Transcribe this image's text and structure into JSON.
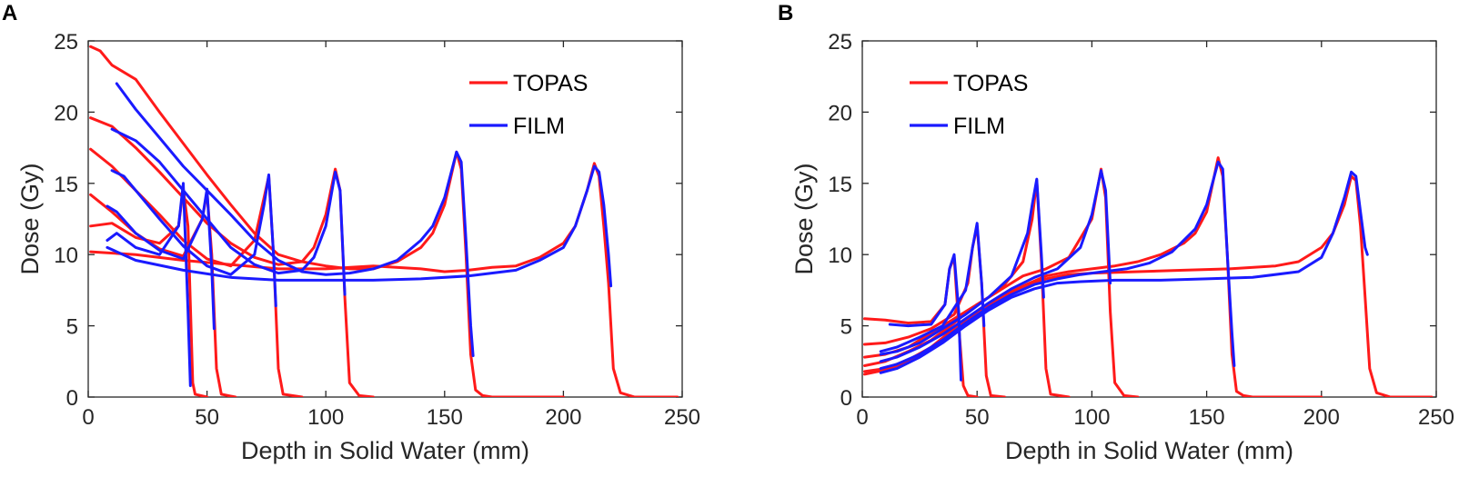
{
  "chart_data": [
    {
      "type": "line",
      "panel_label": "A",
      "xlabel": "Depth in Solid Water (mm)",
      "ylabel": "Dose (Gy)",
      "xlim": [
        0,
        250
      ],
      "ylim": [
        0,
        25
      ],
      "xticks": [
        0,
        50,
        100,
        150,
        200,
        250
      ],
      "yticks": [
        0,
        5,
        10,
        15,
        20,
        25
      ],
      "legend": {
        "position": "top-right",
        "entries": [
          {
            "name": "TOPAS",
            "color": "#ff1a1a"
          },
          {
            "name": "FILM",
            "color": "#1a1aff"
          }
        ]
      },
      "series": [
        {
          "name": "TOPAS",
          "color": "#ff1a1a",
          "x": [
            1,
            10,
            20,
            30,
            38,
            40,
            42,
            44,
            45,
            50
          ],
          "y": [
            12.0,
            12.2,
            11.2,
            10.8,
            12.0,
            14.6,
            12.0,
            1.0,
            0.2,
            0.0
          ]
        },
        {
          "name": "TOPAS",
          "color": "#ff1a1a",
          "x": [
            1,
            10,
            20,
            30,
            40,
            48,
            50,
            52,
            54,
            56,
            62
          ],
          "y": [
            14.2,
            13.0,
            11.5,
            10.4,
            9.9,
            12.5,
            14.4,
            10.0,
            2.0,
            0.2,
            0.0
          ]
        },
        {
          "name": "TOPAS",
          "color": "#ff1a1a",
          "x": [
            1,
            10,
            20,
            30,
            40,
            50,
            60,
            70,
            74,
            76,
            78,
            80,
            82,
            90
          ],
          "y": [
            17.4,
            16.2,
            14.5,
            12.8,
            11.0,
            9.7,
            9.2,
            11.0,
            14.0,
            15.5,
            10.0,
            2.0,
            0.2,
            0.0
          ]
        },
        {
          "name": "TOPAS",
          "color": "#ff1a1a",
          "x": [
            1,
            10,
            20,
            30,
            40,
            50,
            60,
            70,
            80,
            90,
            95,
            100,
            104,
            106,
            108,
            110,
            114,
            120
          ],
          "y": [
            19.6,
            19.0,
            17.5,
            15.8,
            14.0,
            12.2,
            10.8,
            9.8,
            9.3,
            9.5,
            10.5,
            12.8,
            16.0,
            14.5,
            7.0,
            1.0,
            0.1,
            0.0
          ]
        },
        {
          "name": "TOPAS",
          "color": "#ff1a1a",
          "x": [
            1,
            5,
            10,
            20,
            30,
            40,
            50,
            60,
            70,
            80,
            90,
            100,
            110,
            120,
            130,
            140,
            145,
            150,
            155,
            157,
            159,
            161,
            163,
            166,
            170,
            200
          ],
          "y": [
            24.6,
            24.3,
            23.3,
            22.3,
            20.0,
            17.8,
            15.6,
            13.5,
            11.5,
            10.0,
            9.5,
            9.2,
            9.0,
            9.0,
            9.5,
            10.5,
            11.5,
            13.5,
            17.2,
            16.0,
            10.0,
            3.0,
            0.5,
            0.1,
            0.0,
            0.0
          ]
        },
        {
          "name": "TOPAS",
          "color": "#ff1a1a",
          "x": [
            1,
            20,
            40,
            60,
            80,
            100,
            120,
            140,
            150,
            160,
            170,
            180,
            190,
            200,
            205,
            210,
            213,
            215,
            217,
            219,
            221,
            224,
            230,
            248
          ],
          "y": [
            10.2,
            10.0,
            9.6,
            9.3,
            9.0,
            9.0,
            9.2,
            9.0,
            8.8,
            8.9,
            9.1,
            9.2,
            9.8,
            10.8,
            12.0,
            14.5,
            16.4,
            15.5,
            12.0,
            8.0,
            2.0,
            0.3,
            0.0,
            0.0
          ]
        },
        {
          "name": "FILM",
          "color": "#1a1aff",
          "x": [
            8,
            12,
            20,
            30,
            38,
            40,
            42,
            43
          ],
          "y": [
            11.0,
            11.5,
            10.5,
            10.0,
            12.0,
            15.0,
            6.0,
            0.8
          ]
        },
        {
          "name": "FILM",
          "color": "#1a1aff",
          "x": [
            8,
            12,
            20,
            30,
            40,
            48,
            50,
            52,
            53
          ],
          "y": [
            13.4,
            13.0,
            11.5,
            10.3,
            9.7,
            12.5,
            14.6,
            9.0,
            4.8
          ]
        },
        {
          "name": "FILM",
          "color": "#1a1aff",
          "x": [
            10,
            15,
            20,
            30,
            40,
            50,
            60,
            70,
            74,
            76,
            78,
            79
          ],
          "y": [
            15.9,
            15.5,
            14.5,
            12.5,
            10.6,
            9.2,
            8.6,
            10.0,
            13.5,
            15.6,
            10.0,
            6.4
          ]
        },
        {
          "name": "FILM",
          "color": "#1a1aff",
          "x": [
            10,
            20,
            30,
            40,
            50,
            60,
            70,
            80,
            90,
            95,
            100,
            104,
            106,
            108
          ],
          "y": [
            18.8,
            18.0,
            16.5,
            14.5,
            12.5,
            10.5,
            9.3,
            8.7,
            8.9,
            9.8,
            12.0,
            15.8,
            14.5,
            7.2
          ]
        },
        {
          "name": "FILM",
          "color": "#1a1aff",
          "x": [
            12,
            20,
            30,
            40,
            50,
            60,
            70,
            80,
            90,
            100,
            110,
            120,
            130,
            140,
            145,
            150,
            155,
            157,
            159,
            161,
            162
          ],
          "y": [
            22.0,
            20.2,
            18.2,
            16.2,
            14.5,
            12.8,
            11.0,
            9.6,
            8.8,
            8.6,
            8.7,
            9.0,
            9.6,
            11.0,
            12.0,
            14.0,
            17.2,
            16.5,
            11.0,
            5.0,
            2.9
          ]
        },
        {
          "name": "FILM",
          "color": "#1a1aff",
          "x": [
            8,
            20,
            40,
            60,
            80,
            100,
            120,
            140,
            160,
            180,
            190,
            200,
            205,
            210,
            213,
            215,
            217,
            219,
            220
          ],
          "y": [
            10.5,
            9.6,
            8.9,
            8.4,
            8.2,
            8.2,
            8.2,
            8.3,
            8.5,
            8.9,
            9.6,
            10.5,
            12.0,
            14.5,
            16.2,
            15.8,
            13.5,
            10.0,
            7.8
          ]
        }
      ]
    },
    {
      "type": "line",
      "panel_label": "B",
      "xlabel": "Depth in Solid Water (mm)",
      "ylabel": "Dose (Gy)",
      "xlim": [
        0,
        250
      ],
      "ylim": [
        0,
        25
      ],
      "xticks": [
        0,
        50,
        100,
        150,
        200,
        250
      ],
      "yticks": [
        0,
        5,
        10,
        15,
        20,
        25
      ],
      "legend": {
        "position": "top-left",
        "entries": [
          {
            "name": "TOPAS",
            "color": "#ff1a1a"
          },
          {
            "name": "FILM",
            "color": "#1a1aff"
          }
        ]
      },
      "series": [
        {
          "name": "TOPAS",
          "color": "#ff1a1a",
          "x": [
            1,
            10,
            20,
            30,
            36,
            38,
            40,
            42,
            44,
            46,
            50
          ],
          "y": [
            5.5,
            5.4,
            5.2,
            5.3,
            6.5,
            9.0,
            9.8,
            5.0,
            0.8,
            0.1,
            0.0
          ]
        },
        {
          "name": "TOPAS",
          "color": "#ff1a1a",
          "x": [
            1,
            10,
            20,
            30,
            40,
            46,
            48,
            50,
            52,
            54,
            56,
            62
          ],
          "y": [
            3.7,
            3.8,
            4.2,
            4.8,
            5.8,
            8.0,
            10.5,
            12.0,
            8.0,
            1.5,
            0.1,
            0.0
          ]
        },
        {
          "name": "TOPAS",
          "color": "#ff1a1a",
          "x": [
            1,
            10,
            20,
            30,
            40,
            50,
            60,
            70,
            74,
            76,
            78,
            80,
            82,
            90
          ],
          "y": [
            2.8,
            3.0,
            3.5,
            4.5,
            5.5,
            6.5,
            7.5,
            9.5,
            12.5,
            15.2,
            9.5,
            2.0,
            0.2,
            0.0
          ]
        },
        {
          "name": "TOPAS",
          "color": "#ff1a1a",
          "x": [
            1,
            10,
            20,
            30,
            40,
            50,
            60,
            70,
            80,
            90,
            100,
            104,
            106,
            108,
            110,
            114,
            120
          ],
          "y": [
            2.2,
            2.5,
            3.2,
            4.0,
            5.2,
            6.5,
            7.5,
            8.5,
            9.0,
            9.8,
            12.5,
            16.0,
            14.0,
            6.0,
            1.0,
            0.1,
            0.0
          ]
        },
        {
          "name": "TOPAS",
          "color": "#ff1a1a",
          "x": [
            1,
            10,
            20,
            30,
            40,
            50,
            60,
            70,
            80,
            90,
            100,
            110,
            120,
            130,
            140,
            145,
            150,
            155,
            157,
            159,
            161,
            163,
            166,
            170,
            200
          ],
          "y": [
            1.8,
            2.0,
            2.6,
            3.5,
            4.8,
            6.0,
            7.0,
            7.8,
            8.5,
            8.8,
            9.0,
            9.2,
            9.5,
            10.0,
            10.8,
            11.5,
            13.0,
            16.8,
            15.5,
            10.0,
            3.0,
            0.4,
            0.1,
            0.0,
            0.0
          ]
        },
        {
          "name": "TOPAS",
          "color": "#ff1a1a",
          "x": [
            1,
            10,
            20,
            30,
            40,
            50,
            60,
            70,
            80,
            90,
            100,
            120,
            140,
            160,
            180,
            190,
            200,
            205,
            210,
            213,
            215,
            217,
            219,
            221,
            224,
            230,
            248
          ],
          "y": [
            1.6,
            1.9,
            2.5,
            3.4,
            4.6,
            5.8,
            6.8,
            7.7,
            8.3,
            8.6,
            8.7,
            8.8,
            8.9,
            9.0,
            9.2,
            9.5,
            10.5,
            11.5,
            13.5,
            15.5,
            15.2,
            12.0,
            7.0,
            2.0,
            0.3,
            0.0,
            0.0
          ]
        },
        {
          "name": "FILM",
          "color": "#1a1aff",
          "x": [
            12,
            20,
            30,
            36,
            38,
            40,
            42,
            43
          ],
          "y": [
            5.1,
            5.0,
            5.1,
            6.5,
            9.0,
            10.0,
            6.0,
            1.2
          ]
        },
        {
          "name": "FILM",
          "color": "#1a1aff",
          "x": [
            8,
            15,
            25,
            35,
            45,
            48,
            50,
            52,
            53
          ],
          "y": [
            3.2,
            3.5,
            4.2,
            5.0,
            7.5,
            10.5,
            12.2,
            8.0,
            5.0
          ]
        },
        {
          "name": "FILM",
          "color": "#1a1aff",
          "x": [
            8,
            15,
            25,
            35,
            45,
            55,
            65,
            72,
            74,
            76,
            78,
            79
          ],
          "y": [
            3.0,
            3.2,
            3.8,
            4.8,
            5.8,
            7.0,
            8.5,
            11.5,
            13.5,
            15.3,
            10.0,
            7.0
          ]
        },
        {
          "name": "FILM",
          "color": "#1a1aff",
          "x": [
            8,
            15,
            25,
            35,
            45,
            55,
            65,
            75,
            85,
            95,
            100,
            104,
            106,
            108
          ],
          "y": [
            2.5,
            2.8,
            3.5,
            4.4,
            5.5,
            6.6,
            7.6,
            8.4,
            9.0,
            10.5,
            12.8,
            15.9,
            14.5,
            8.0
          ]
        },
        {
          "name": "FILM",
          "color": "#1a1aff",
          "x": [
            8,
            15,
            25,
            35,
            45,
            55,
            65,
            75,
            85,
            95,
            105,
            115,
            125,
            135,
            145,
            150,
            155,
            157,
            159,
            161,
            162
          ],
          "y": [
            2.0,
            2.3,
            3.0,
            4.0,
            5.2,
            6.3,
            7.2,
            7.9,
            8.3,
            8.6,
            8.8,
            9.0,
            9.4,
            10.2,
            11.8,
            13.5,
            16.5,
            16.0,
            10.0,
            4.5,
            2.2
          ]
        },
        {
          "name": "FILM",
          "color": "#1a1aff",
          "x": [
            8,
            15,
            25,
            35,
            45,
            55,
            65,
            75,
            85,
            95,
            110,
            130,
            150,
            170,
            190,
            200,
            205,
            210,
            213,
            215,
            217,
            219,
            220
          ],
          "y": [
            1.7,
            2.0,
            2.8,
            3.8,
            5.0,
            6.1,
            7.0,
            7.6,
            8.0,
            8.1,
            8.2,
            8.2,
            8.3,
            8.4,
            8.8,
            9.8,
            11.5,
            14.0,
            15.8,
            15.5,
            13.0,
            10.5,
            10.0
          ]
        }
      ]
    }
  ]
}
